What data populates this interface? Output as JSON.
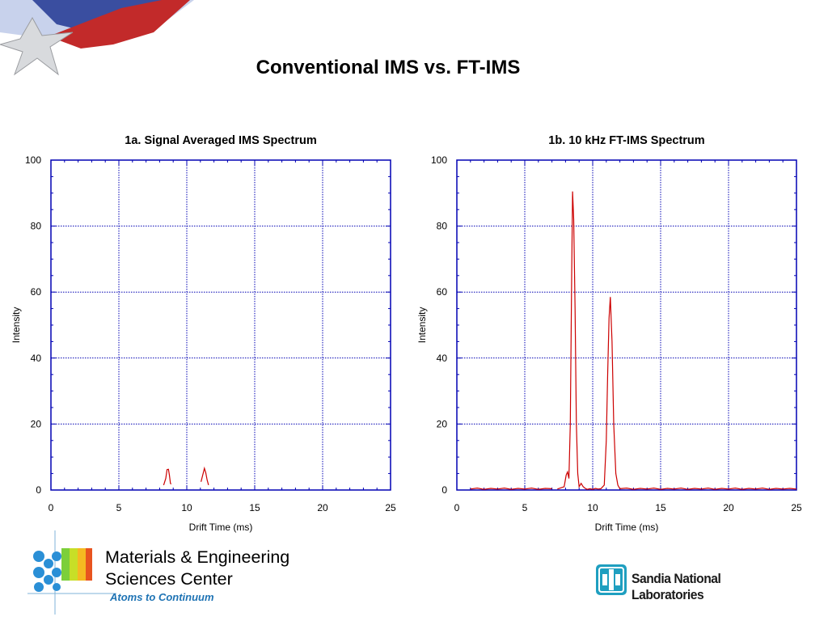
{
  "slide": {
    "title": "Conventional IMS vs. FT-IMS"
  },
  "footer": {
    "center_name_line1": "Materials & Engineering",
    "center_name_line2": "Sciences Center",
    "tagline": "Atoms to Continuum",
    "lab_name": "Sandia National Laboratories"
  },
  "colors": {
    "trace": "#cc0000",
    "axis": "#0000b4",
    "grid": "#0000b4",
    "tagline": "#1e73b4"
  },
  "chart_data": [
    {
      "type": "line",
      "title": "1a. Signal Averaged IMS Spectrum",
      "xlabel": "Drift Time (ms)",
      "ylabel": "Intensity",
      "xlim": [
        0,
        25
      ],
      "ylim": [
        0,
        100
      ],
      "xticks": [
        0,
        5,
        10,
        15,
        20,
        25
      ],
      "yticks": [
        0,
        20,
        40,
        60,
        80,
        100
      ],
      "grid": true,
      "segments": [
        [
          [
            8.3,
            1.5
          ],
          [
            8.45,
            3.5
          ],
          [
            8.55,
            6.2
          ],
          [
            8.65,
            6.3
          ],
          [
            8.72,
            4.5
          ],
          [
            8.8,
            2.0
          ],
          [
            8.85,
            1.8
          ]
        ],
        [
          [
            11.05,
            2.5
          ],
          [
            11.2,
            5.0
          ],
          [
            11.3,
            6.6
          ],
          [
            11.4,
            5.2
          ],
          [
            11.5,
            3.0
          ],
          [
            11.6,
            1.5
          ]
        ]
      ]
    },
    {
      "type": "line",
      "title": "1b. 10 kHz FT-IMS Spectrum",
      "xlabel": "Drift Time (ms)",
      "ylabel": "Intensity",
      "xlim": [
        0,
        25
      ],
      "ylim": [
        0,
        100
      ],
      "xticks": [
        0,
        5,
        10,
        15,
        20,
        25
      ],
      "yticks": [
        0,
        20,
        40,
        60,
        80,
        100
      ],
      "grid": true,
      "segments": [
        [
          [
            1.0,
            0.3
          ],
          [
            1.5,
            0.6
          ],
          [
            2.0,
            0.2
          ],
          [
            2.5,
            0.5
          ],
          [
            3.0,
            0.3
          ],
          [
            3.5,
            0.6
          ],
          [
            4.0,
            0.2
          ],
          [
            4.5,
            0.5
          ],
          [
            5.0,
            0.3
          ],
          [
            5.5,
            0.6
          ],
          [
            6.0,
            0.2
          ],
          [
            6.5,
            0.5
          ],
          [
            7.0,
            0.4
          ]
        ],
        [
          [
            7.4,
            0.3
          ],
          [
            7.9,
            1.0
          ],
          [
            8.05,
            4.5
          ],
          [
            8.15,
            5.5
          ],
          [
            8.25,
            3.5
          ],
          [
            8.35,
            20
          ],
          [
            8.45,
            65
          ],
          [
            8.52,
            90.5
          ],
          [
            8.6,
            82
          ],
          [
            8.7,
            55
          ],
          [
            8.8,
            20
          ],
          [
            8.9,
            5
          ],
          [
            9.0,
            1.0
          ],
          [
            9.15,
            2.0
          ],
          [
            9.3,
            1.0
          ],
          [
            9.45,
            0.5
          ],
          [
            9.6,
            0.2
          ],
          [
            9.8,
            0.4
          ],
          [
            10.0,
            0.2
          ],
          [
            10.2,
            0.5
          ],
          [
            10.4,
            0.3
          ],
          [
            10.6,
            0.4
          ],
          [
            10.85,
            1.5
          ],
          [
            11.0,
            15
          ],
          [
            11.1,
            35
          ],
          [
            11.2,
            52
          ],
          [
            11.3,
            58.5
          ],
          [
            11.42,
            45
          ],
          [
            11.55,
            20
          ],
          [
            11.7,
            5
          ],
          [
            11.85,
            1.5
          ],
          [
            12.0,
            0.4
          ],
          [
            12.5,
            0.6
          ],
          [
            13.0,
            0.2
          ],
          [
            13.5,
            0.5
          ],
          [
            14.0,
            0.3
          ],
          [
            14.5,
            0.6
          ],
          [
            15.0,
            0.2
          ],
          [
            15.5,
            0.5
          ],
          [
            16.0,
            0.3
          ],
          [
            16.5,
            0.6
          ],
          [
            17.0,
            0.2
          ],
          [
            17.5,
            0.5
          ],
          [
            18.0,
            0.3
          ],
          [
            18.5,
            0.6
          ],
          [
            19.0,
            0.2
          ],
          [
            19.5,
            0.5
          ],
          [
            20.0,
            0.3
          ],
          [
            20.5,
            0.6
          ],
          [
            21.0,
            0.2
          ],
          [
            21.5,
            0.5
          ],
          [
            22.0,
            0.3
          ],
          [
            22.5,
            0.6
          ],
          [
            23.0,
            0.2
          ],
          [
            23.5,
            0.5
          ],
          [
            24.0,
            0.3
          ],
          [
            24.5,
            0.5
          ],
          [
            25.0,
            0.3
          ]
        ]
      ]
    }
  ]
}
